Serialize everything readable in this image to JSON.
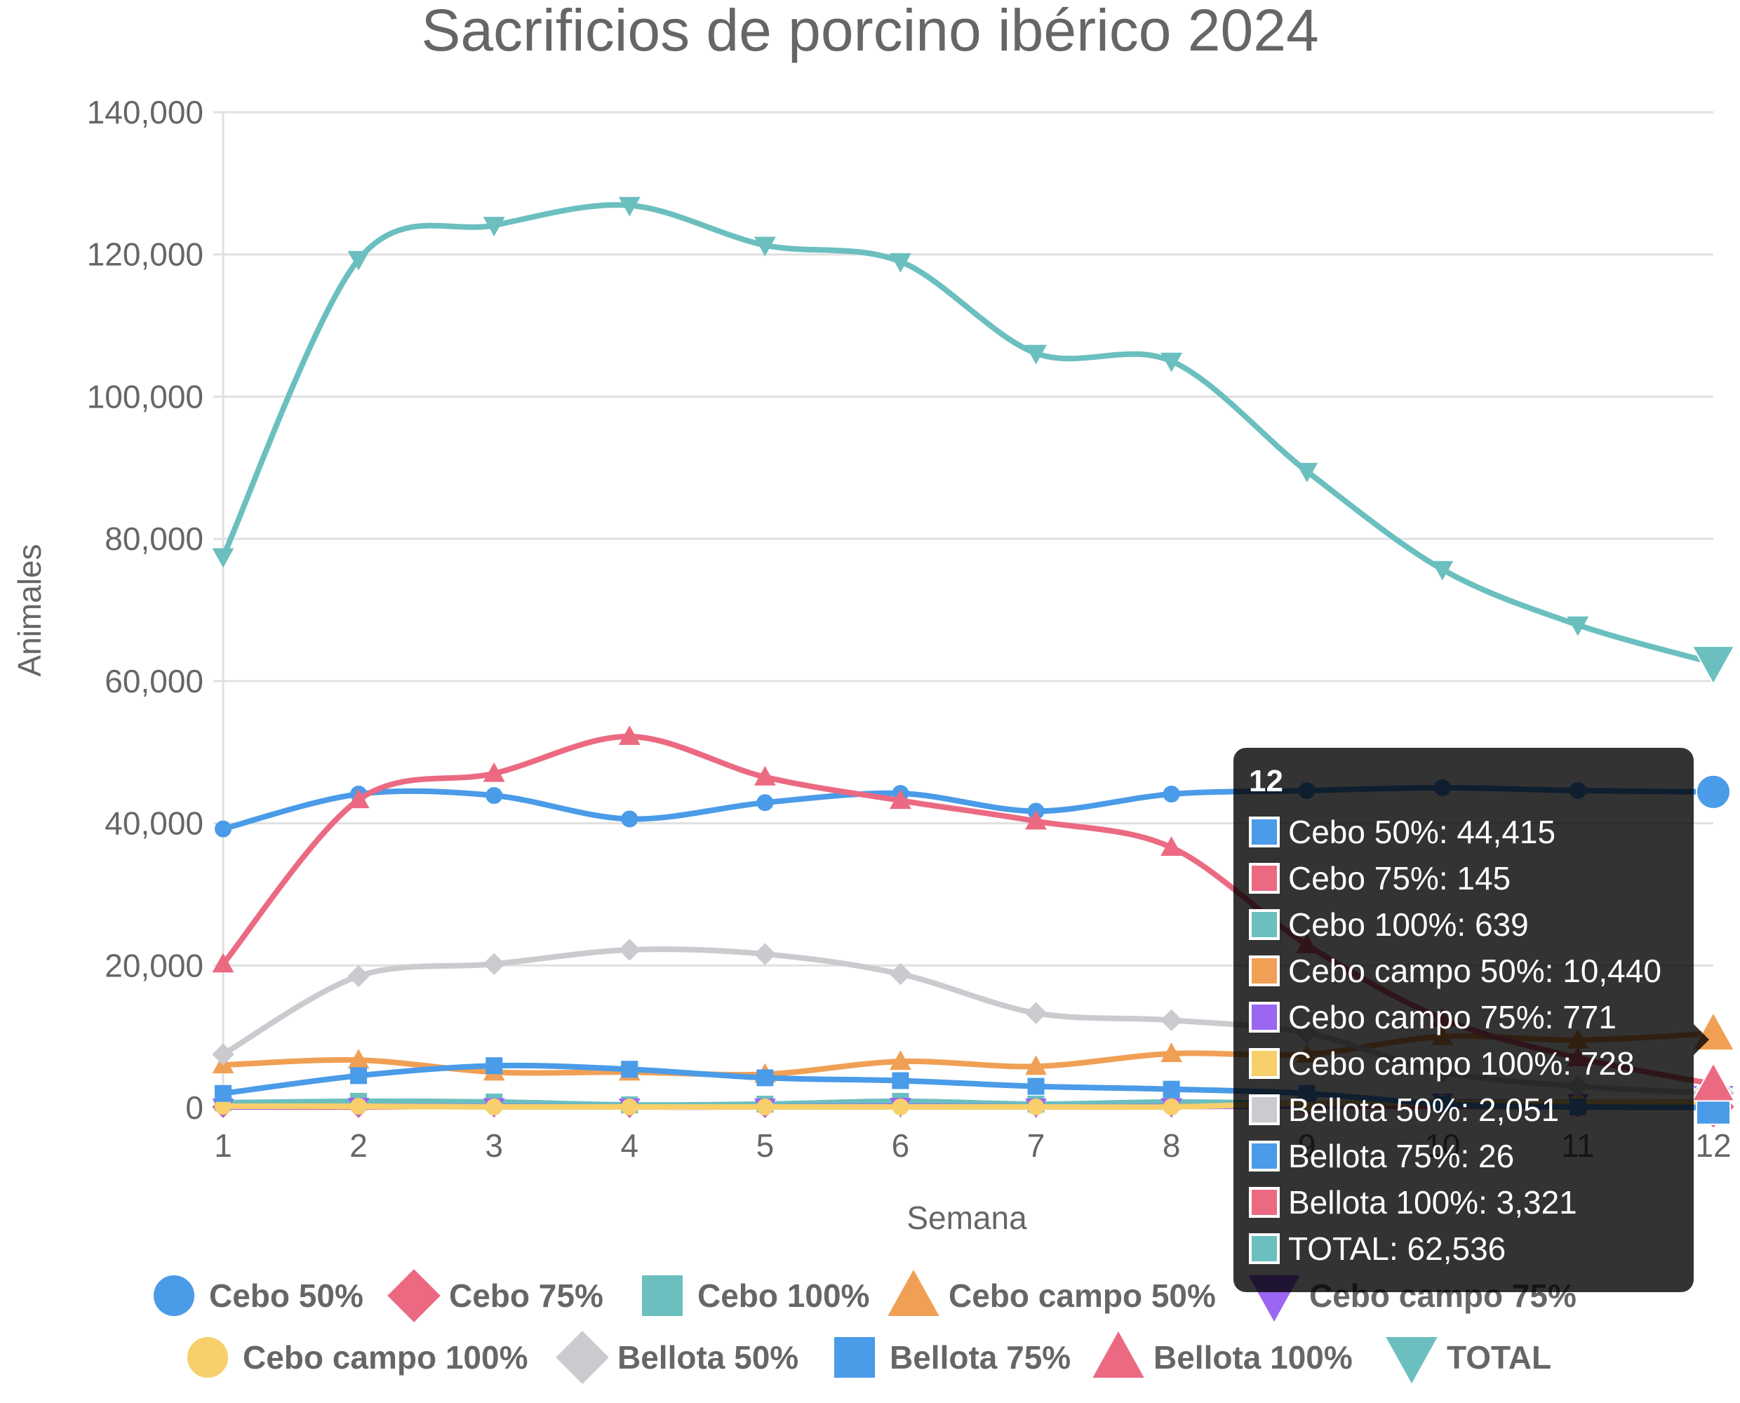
{
  "chart_data": {
    "type": "line",
    "title": "Sacrificios de porcino ibérico 2024",
    "xlabel": "Semana",
    "ylabel": "Animales",
    "x": [
      1,
      2,
      3,
      4,
      5,
      6,
      7,
      8,
      9,
      10,
      11,
      12
    ],
    "ylim": [
      0,
      140000
    ],
    "y_ticks": [
      0,
      20000,
      40000,
      60000,
      80000,
      100000,
      120000,
      140000
    ],
    "y_tick_labels": [
      "0",
      "20,000",
      "40,000",
      "60,000",
      "80,000",
      "100,000",
      "120,000",
      "140,000"
    ],
    "x_tick_labels": [
      "1",
      "2",
      "3",
      "4",
      "5",
      "6",
      "7",
      "8",
      "9",
      "10",
      "11",
      "12"
    ],
    "grid": true,
    "legend_position": "bottom",
    "series": [
      {
        "name": "Cebo 50%",
        "color": "#4a9be8",
        "marker": "circle",
        "values": [
          39200,
          44100,
          43900,
          40600,
          42900,
          44200,
          41700,
          44100,
          44600,
          45000,
          44600,
          44415
        ]
      },
      {
        "name": "Cebo 75%",
        "color": "#eb6a82",
        "marker": "diamond",
        "values": [
          100,
          100,
          200,
          100,
          100,
          300,
          200,
          200,
          200,
          200,
          150,
          145
        ]
      },
      {
        "name": "Cebo 100%",
        "color": "#6bbfbf",
        "marker": "square",
        "values": [
          700,
          900,
          800,
          400,
          500,
          900,
          500,
          800,
          600,
          700,
          650,
          639
        ]
      },
      {
        "name": "Cebo campo 50%",
        "color": "#f0a055",
        "marker": "triangle",
        "values": [
          6000,
          6700,
          5000,
          5000,
          4700,
          6500,
          5800,
          7600,
          7500,
          10000,
          9500,
          10440
        ]
      },
      {
        "name": "Cebo campo 75%",
        "color": "#9b66f2",
        "marker": "triangle-down",
        "values": [
          100,
          200,
          150,
          100,
          100,
          200,
          100,
          150,
          300,
          800,
          750,
          771
        ]
      },
      {
        "name": "Cebo campo 100%",
        "color": "#f7cf6b",
        "marker": "circle",
        "values": [
          200,
          200,
          100,
          100,
          100,
          100,
          100,
          100,
          600,
          700,
          720,
          728
        ]
      },
      {
        "name": "Bellota 50%",
        "color": "#c9cbcf",
        "marker": "diamond",
        "values": [
          7500,
          18500,
          20200,
          22200,
          21600,
          18800,
          13300,
          12300,
          10500,
          5000,
          3000,
          2051
        ]
      },
      {
        "name": "Bellota 75%",
        "color": "#4a9be8",
        "marker": "square",
        "values": [
          2000,
          4500,
          5900,
          5400,
          4200,
          3800,
          3000,
          2600,
          2000,
          500,
          100,
          26
        ]
      },
      {
        "name": "Bellota 100%",
        "color": "#eb6a82",
        "marker": "triangle",
        "values": [
          20200,
          43300,
          47000,
          52200,
          46500,
          43200,
          40300,
          36600,
          22900,
          12500,
          7000,
          3321
        ]
      },
      {
        "name": "TOTAL",
        "color": "#6bbfbf",
        "marker": "triangle-down",
        "values": [
          77500,
          119300,
          124100,
          126900,
          121300,
          119000,
          106100,
          105000,
          89500,
          75700,
          67900,
          62536
        ]
      }
    ],
    "tooltip": {
      "title": "12",
      "lines": [
        "Cebo 50%: 44,415",
        "Cebo 75%: 145",
        "Cebo 100%: 639",
        "Cebo campo 50%: 10,440",
        "Cebo campo 75%: 771",
        "Cebo campo 100%: 728",
        "Bellota 50%: 2,051",
        "Bellota 75%: 26",
        "Bellota 100%: 3,321",
        "TOTAL: 62,536"
      ]
    }
  }
}
